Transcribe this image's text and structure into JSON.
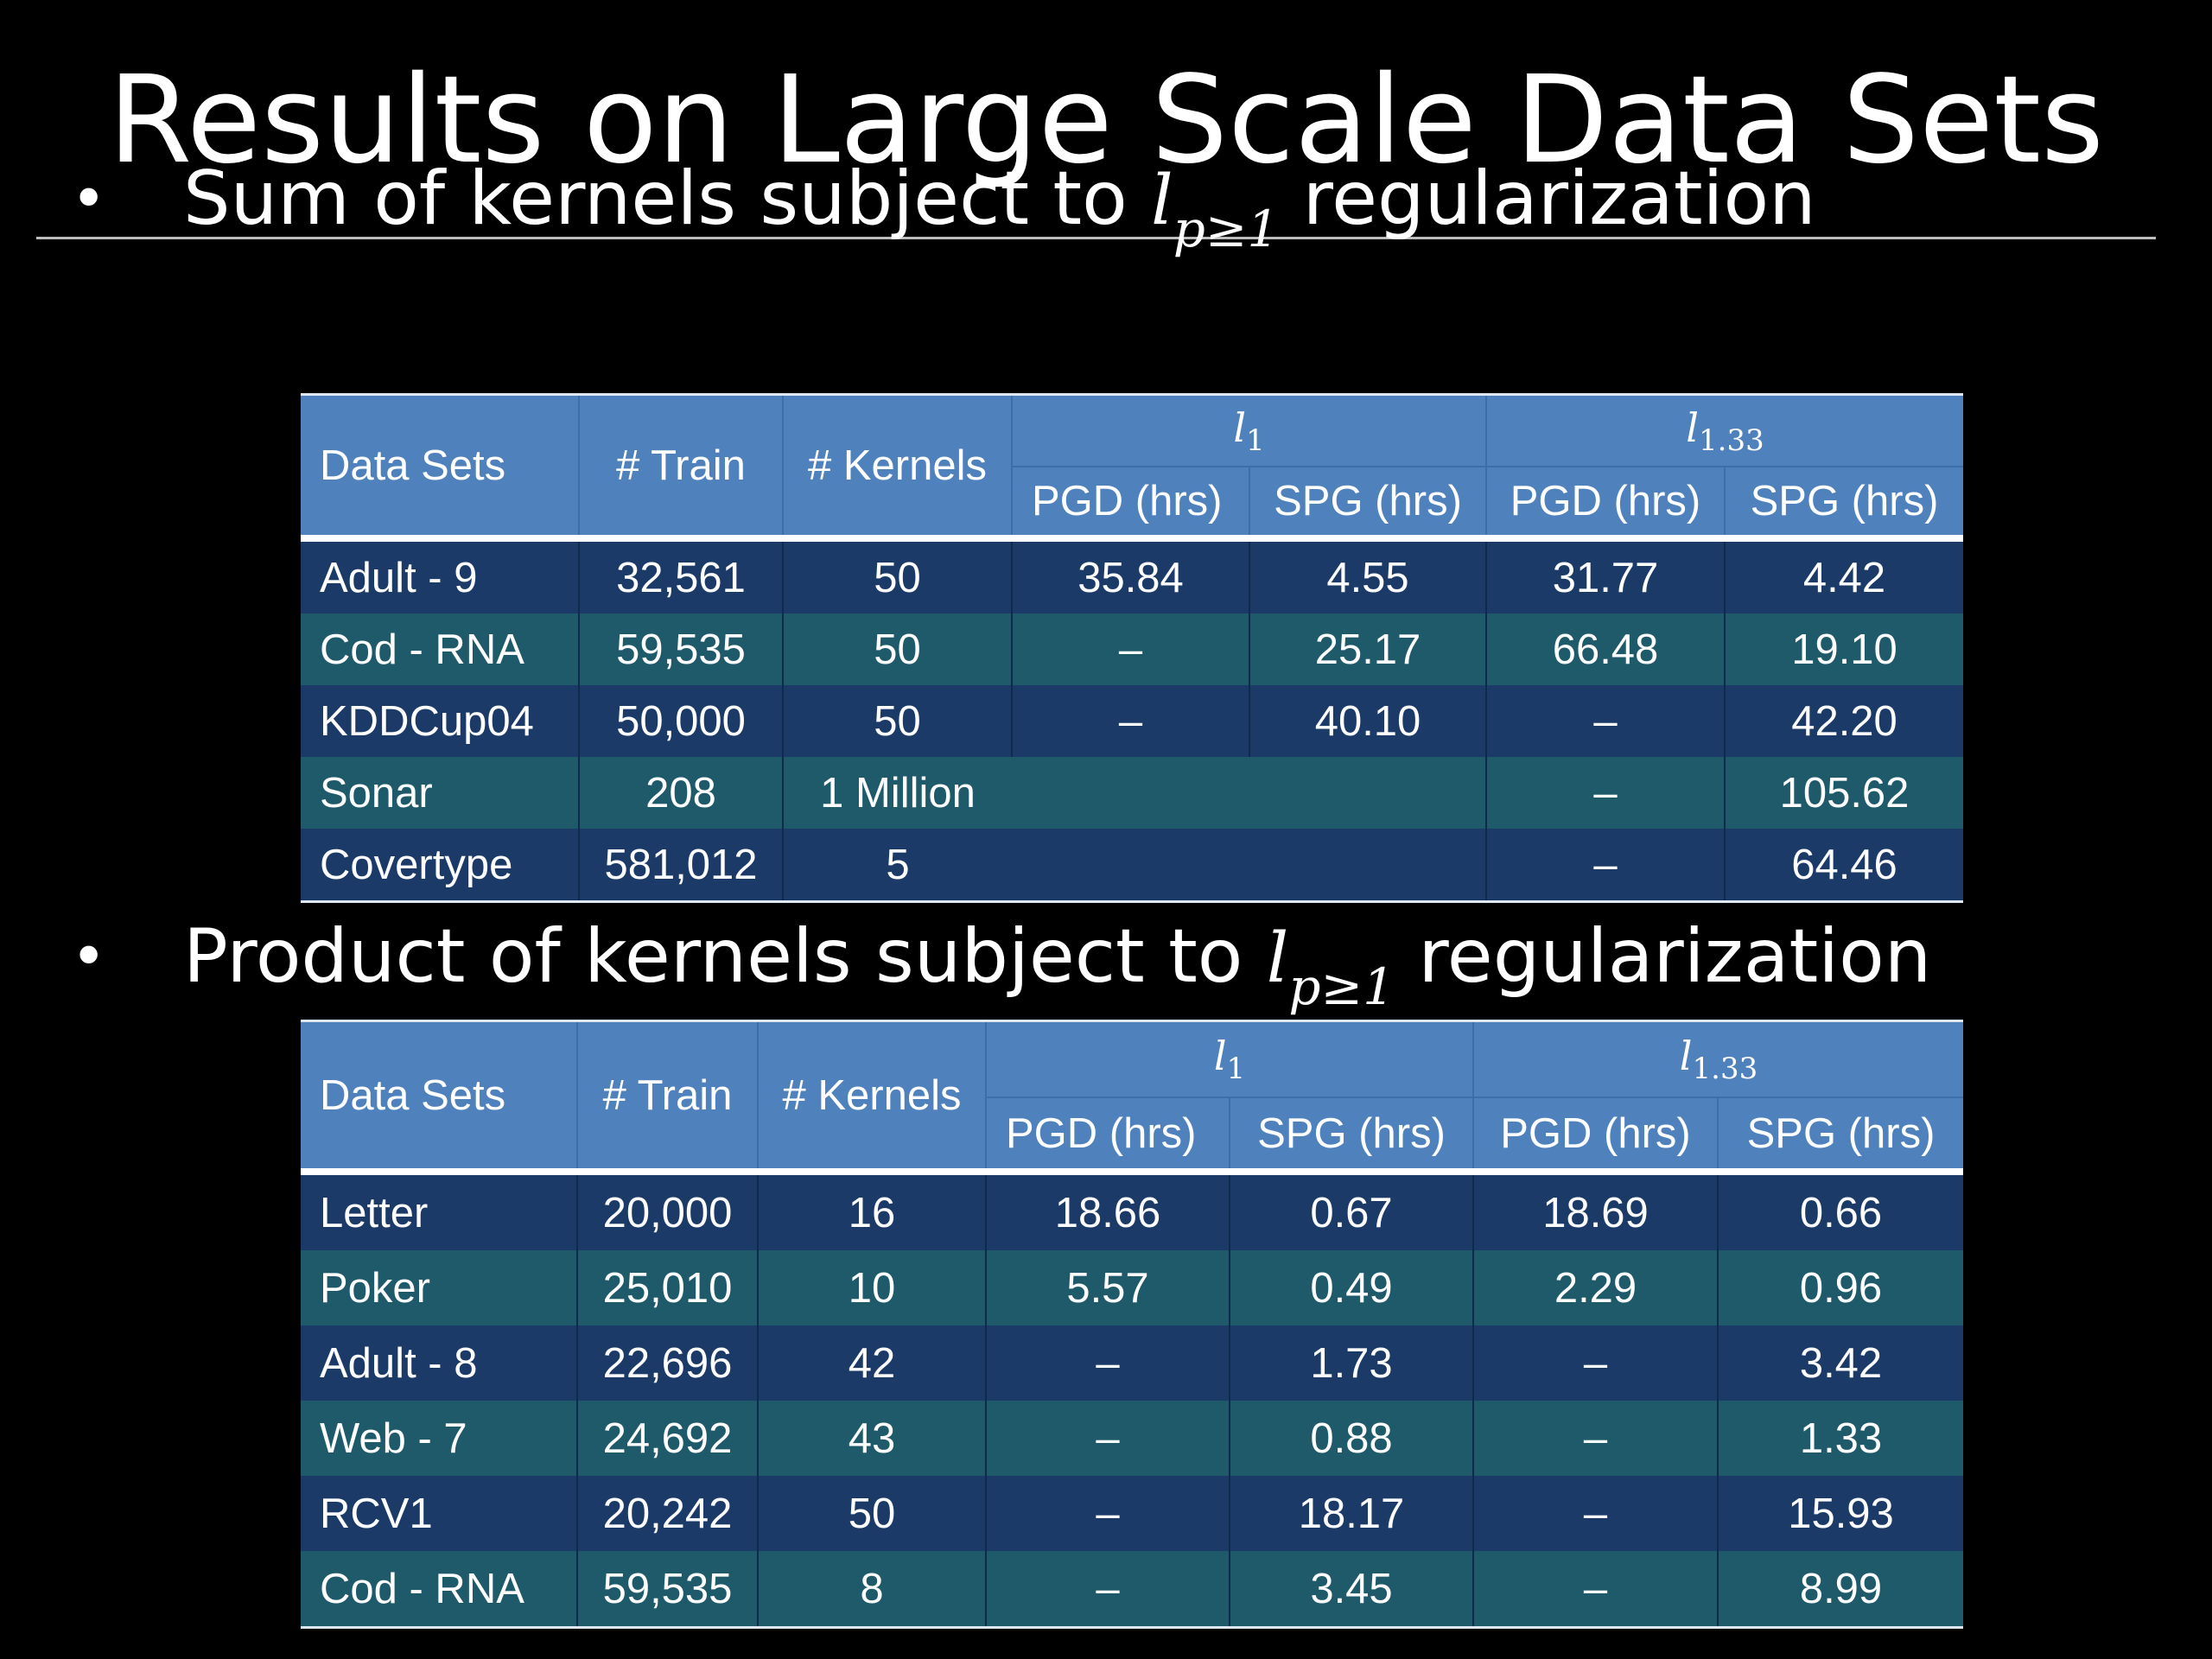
{
  "slide": {
    "title": "Results on Large Scale Data Sets",
    "bullet1": {
      "marker": "•",
      "prefix": "Sum of kernels subject to ",
      "math_base": "l",
      "math_sub": "p≥1",
      "suffix": " regularization"
    },
    "bullet2": {
      "marker": "•",
      "prefix": "Product of kernels subject to ",
      "math_base": "l",
      "math_sub": "p≥1",
      "suffix": " regularization"
    }
  },
  "table1": {
    "headers": {
      "data_sets": "Data Sets",
      "train": "# Train",
      "kernels": "# Kernels",
      "group1_base": "l",
      "group1_sub": "1",
      "group2_base": "l",
      "group2_sub": "1.33",
      "pgd": "PGD (hrs)",
      "spg": "SPG (hrs)"
    },
    "rows": [
      {
        "name": "Adult - 9",
        "train": "32,561",
        "kernels": "50",
        "l1_pgd": "35.84",
        "l1_spg": "4.55",
        "l133_pgd": "31.77",
        "l133_spg": "4.42"
      },
      {
        "name": "Cod - RNA",
        "train": "59,535",
        "kernels": "50",
        "l1_pgd": "–",
        "l1_spg": "25.17",
        "l133_pgd": "66.48",
        "l133_spg": "19.10"
      },
      {
        "name": "KDDCup04",
        "train": "50,000",
        "kernels": "50",
        "l1_pgd": "–",
        "l1_spg": "40.10",
        "l133_pgd": "–",
        "l133_spg": "42.20"
      },
      {
        "name": "Sonar",
        "train": "208",
        "kernels": "1 Million",
        "l1_pgd": "",
        "l1_spg": "",
        "l133_pgd": "–",
        "l133_spg": "105.62"
      },
      {
        "name": "Covertype",
        "train": "581,012",
        "kernels": "5",
        "l1_pgd": "",
        "l1_spg": "",
        "l133_pgd": "–",
        "l133_spg": "64.46"
      }
    ]
  },
  "table2": {
    "headers": {
      "data_sets": "Data Sets",
      "train": "# Train",
      "kernels": "# Kernels",
      "group1_base": "l",
      "group1_sub": "1",
      "group2_base": "l",
      "group2_sub": "1.33",
      "pgd": "PGD (hrs)",
      "spg": "SPG (hrs)"
    },
    "rows": [
      {
        "name": "Letter",
        "train": "20,000",
        "kernels": "16",
        "l1_pgd": "18.66",
        "l1_spg": "0.67",
        "l133_pgd": "18.69",
        "l133_spg": "0.66"
      },
      {
        "name": "Poker",
        "train": "25,010",
        "kernels": "10",
        "l1_pgd": "5.57",
        "l1_spg": "0.49",
        "l133_pgd": "2.29",
        "l133_spg": "0.96"
      },
      {
        "name": "Adult - 8",
        "train": "22,696",
        "kernels": "42",
        "l1_pgd": "–",
        "l1_spg": "1.73",
        "l133_pgd": "–",
        "l133_spg": "3.42"
      },
      {
        "name": "Web - 7",
        "train": "24,692",
        "kernels": "43",
        "l1_pgd": "–",
        "l1_spg": "0.88",
        "l133_pgd": "–",
        "l133_spg": "1.33"
      },
      {
        "name": "RCV1",
        "train": "20,242",
        "kernels": "50",
        "l1_pgd": "–",
        "l1_spg": "18.17",
        "l133_pgd": "–",
        "l133_spg": "15.93"
      },
      {
        "name": "Cod - RNA",
        "train": "59,535",
        "kernels": "8",
        "l1_pgd": "–",
        "l1_spg": "3.45",
        "l133_pgd": "–",
        "l133_spg": "8.99"
      }
    ]
  }
}
